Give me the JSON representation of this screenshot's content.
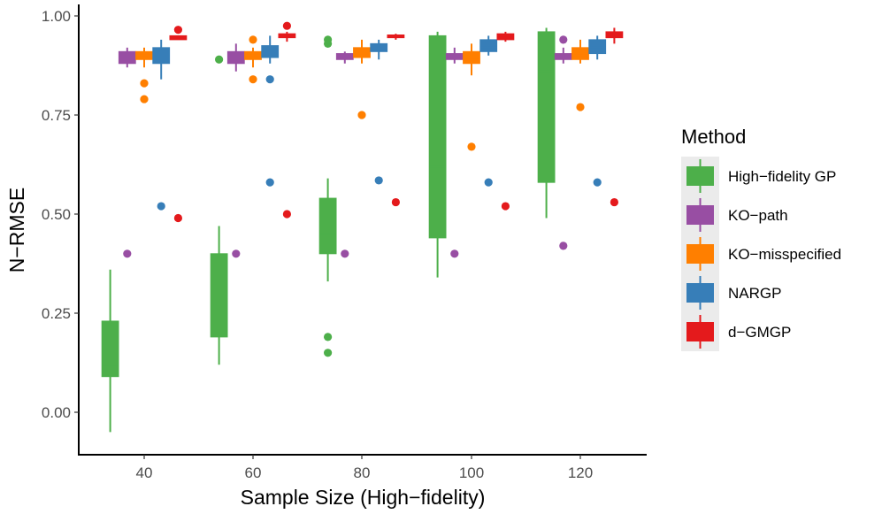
{
  "chart_data": {
    "type": "boxplot",
    "xlabel": "Sample Size (High−fidelity)",
    "ylabel": "N−RMSE",
    "categories": [
      "40",
      "60",
      "80",
      "100",
      "120"
    ],
    "yticks": [
      "0.00",
      "0.25",
      "0.50",
      "0.75",
      "1.00"
    ],
    "ylim": [
      -0.1,
      1.02
    ],
    "legend": {
      "title": "Method",
      "position": "right"
    },
    "series": [
      {
        "name": "High−fidelity GP",
        "color": "#4DAF4A",
        "boxes": [
          {
            "min": -0.05,
            "q1": 0.09,
            "median": 0.12,
            "q3": 0.23,
            "max": 0.36,
            "outliers": []
          },
          {
            "min": 0.12,
            "q1": 0.19,
            "median": 0.28,
            "q3": 0.4,
            "max": 0.47,
            "outliers": [
              0.89
            ]
          },
          {
            "min": 0.33,
            "q1": 0.4,
            "median": 0.45,
            "q3": 0.54,
            "max": 0.59,
            "outliers": [
              0.15,
              0.19,
              0.93,
              0.94
            ]
          },
          {
            "min": 0.34,
            "q1": 0.44,
            "median": 0.62,
            "q3": 0.95,
            "max": 0.96,
            "outliers": []
          },
          {
            "min": 0.49,
            "q1": 0.58,
            "median": 0.86,
            "q3": 0.96,
            "max": 0.97,
            "outliers": []
          }
        ]
      },
      {
        "name": "KO−path",
        "color": "#984EA3",
        "boxes": [
          {
            "min": 0.87,
            "q1": 0.88,
            "median": 0.895,
            "q3": 0.91,
            "max": 0.92,
            "outliers": [
              0.4
            ]
          },
          {
            "min": 0.86,
            "q1": 0.88,
            "median": 0.895,
            "q3": 0.91,
            "max": 0.93,
            "outliers": [
              0.4
            ]
          },
          {
            "min": 0.88,
            "q1": 0.89,
            "median": 0.898,
            "q3": 0.905,
            "max": 0.91,
            "outliers": [
              0.4
            ]
          },
          {
            "min": 0.88,
            "q1": 0.89,
            "median": 0.898,
            "q3": 0.905,
            "max": 0.92,
            "outliers": [
              0.4
            ]
          },
          {
            "min": 0.88,
            "q1": 0.89,
            "median": 0.898,
            "q3": 0.905,
            "max": 0.92,
            "outliers": [
              0.42,
              0.94
            ]
          }
        ]
      },
      {
        "name": "KO−misspecified",
        "color": "#FF7F00",
        "boxes": [
          {
            "min": 0.87,
            "q1": 0.89,
            "median": 0.9,
            "q3": 0.91,
            "max": 0.92,
            "outliers": [
              0.79,
              0.83
            ]
          },
          {
            "min": 0.87,
            "q1": 0.89,
            "median": 0.9,
            "q3": 0.91,
            "max": 0.92,
            "outliers": [
              0.84,
              0.94
            ]
          },
          {
            "min": 0.88,
            "q1": 0.895,
            "median": 0.905,
            "q3": 0.92,
            "max": 0.94,
            "outliers": [
              0.75
            ]
          },
          {
            "min": 0.85,
            "q1": 0.88,
            "median": 0.89,
            "q3": 0.91,
            "max": 0.93,
            "outliers": [
              0.67
            ]
          },
          {
            "min": 0.88,
            "q1": 0.89,
            "median": 0.9,
            "q3": 0.92,
            "max": 0.94,
            "outliers": [
              0.77
            ]
          }
        ]
      },
      {
        "name": "NARGP",
        "color": "#377EB8",
        "boxes": [
          {
            "min": 0.84,
            "q1": 0.88,
            "median": 0.895,
            "q3": 0.92,
            "max": 0.94,
            "outliers": [
              0.52
            ]
          },
          {
            "min": 0.88,
            "q1": 0.895,
            "median": 0.905,
            "q3": 0.925,
            "max": 0.95,
            "outliers": [
              0.58,
              0.84
            ]
          },
          {
            "min": 0.89,
            "q1": 0.91,
            "median": 0.915,
            "q3": 0.93,
            "max": 0.94,
            "outliers": [
              0.585
            ]
          },
          {
            "min": 0.9,
            "q1": 0.91,
            "median": 0.92,
            "q3": 0.94,
            "max": 0.95,
            "outliers": [
              0.58
            ]
          },
          {
            "min": 0.89,
            "q1": 0.905,
            "median": 0.92,
            "q3": 0.94,
            "max": 0.95,
            "outliers": [
              0.58
            ]
          }
        ]
      },
      {
        "name": "d−GMGP",
        "color": "#E41A1C",
        "boxes": [
          {
            "min": 0.94,
            "q1": 0.94,
            "median": 0.945,
            "q3": 0.95,
            "max": 0.95,
            "outliers": [
              0.49,
              0.965
            ]
          },
          {
            "min": 0.935,
            "q1": 0.945,
            "median": 0.948,
            "q3": 0.955,
            "max": 0.96,
            "outliers": [
              0.5,
              0.975
            ]
          },
          {
            "min": 0.94,
            "q1": 0.945,
            "median": 0.948,
            "q3": 0.952,
            "max": 0.955,
            "outliers": [
              0.53
            ]
          },
          {
            "min": 0.935,
            "q1": 0.94,
            "median": 0.948,
            "q3": 0.955,
            "max": 0.96,
            "outliers": [
              0.52
            ]
          },
          {
            "min": 0.93,
            "q1": 0.945,
            "median": 0.952,
            "q3": 0.96,
            "max": 0.97,
            "outliers": [
              0.53
            ]
          }
        ]
      }
    ]
  }
}
